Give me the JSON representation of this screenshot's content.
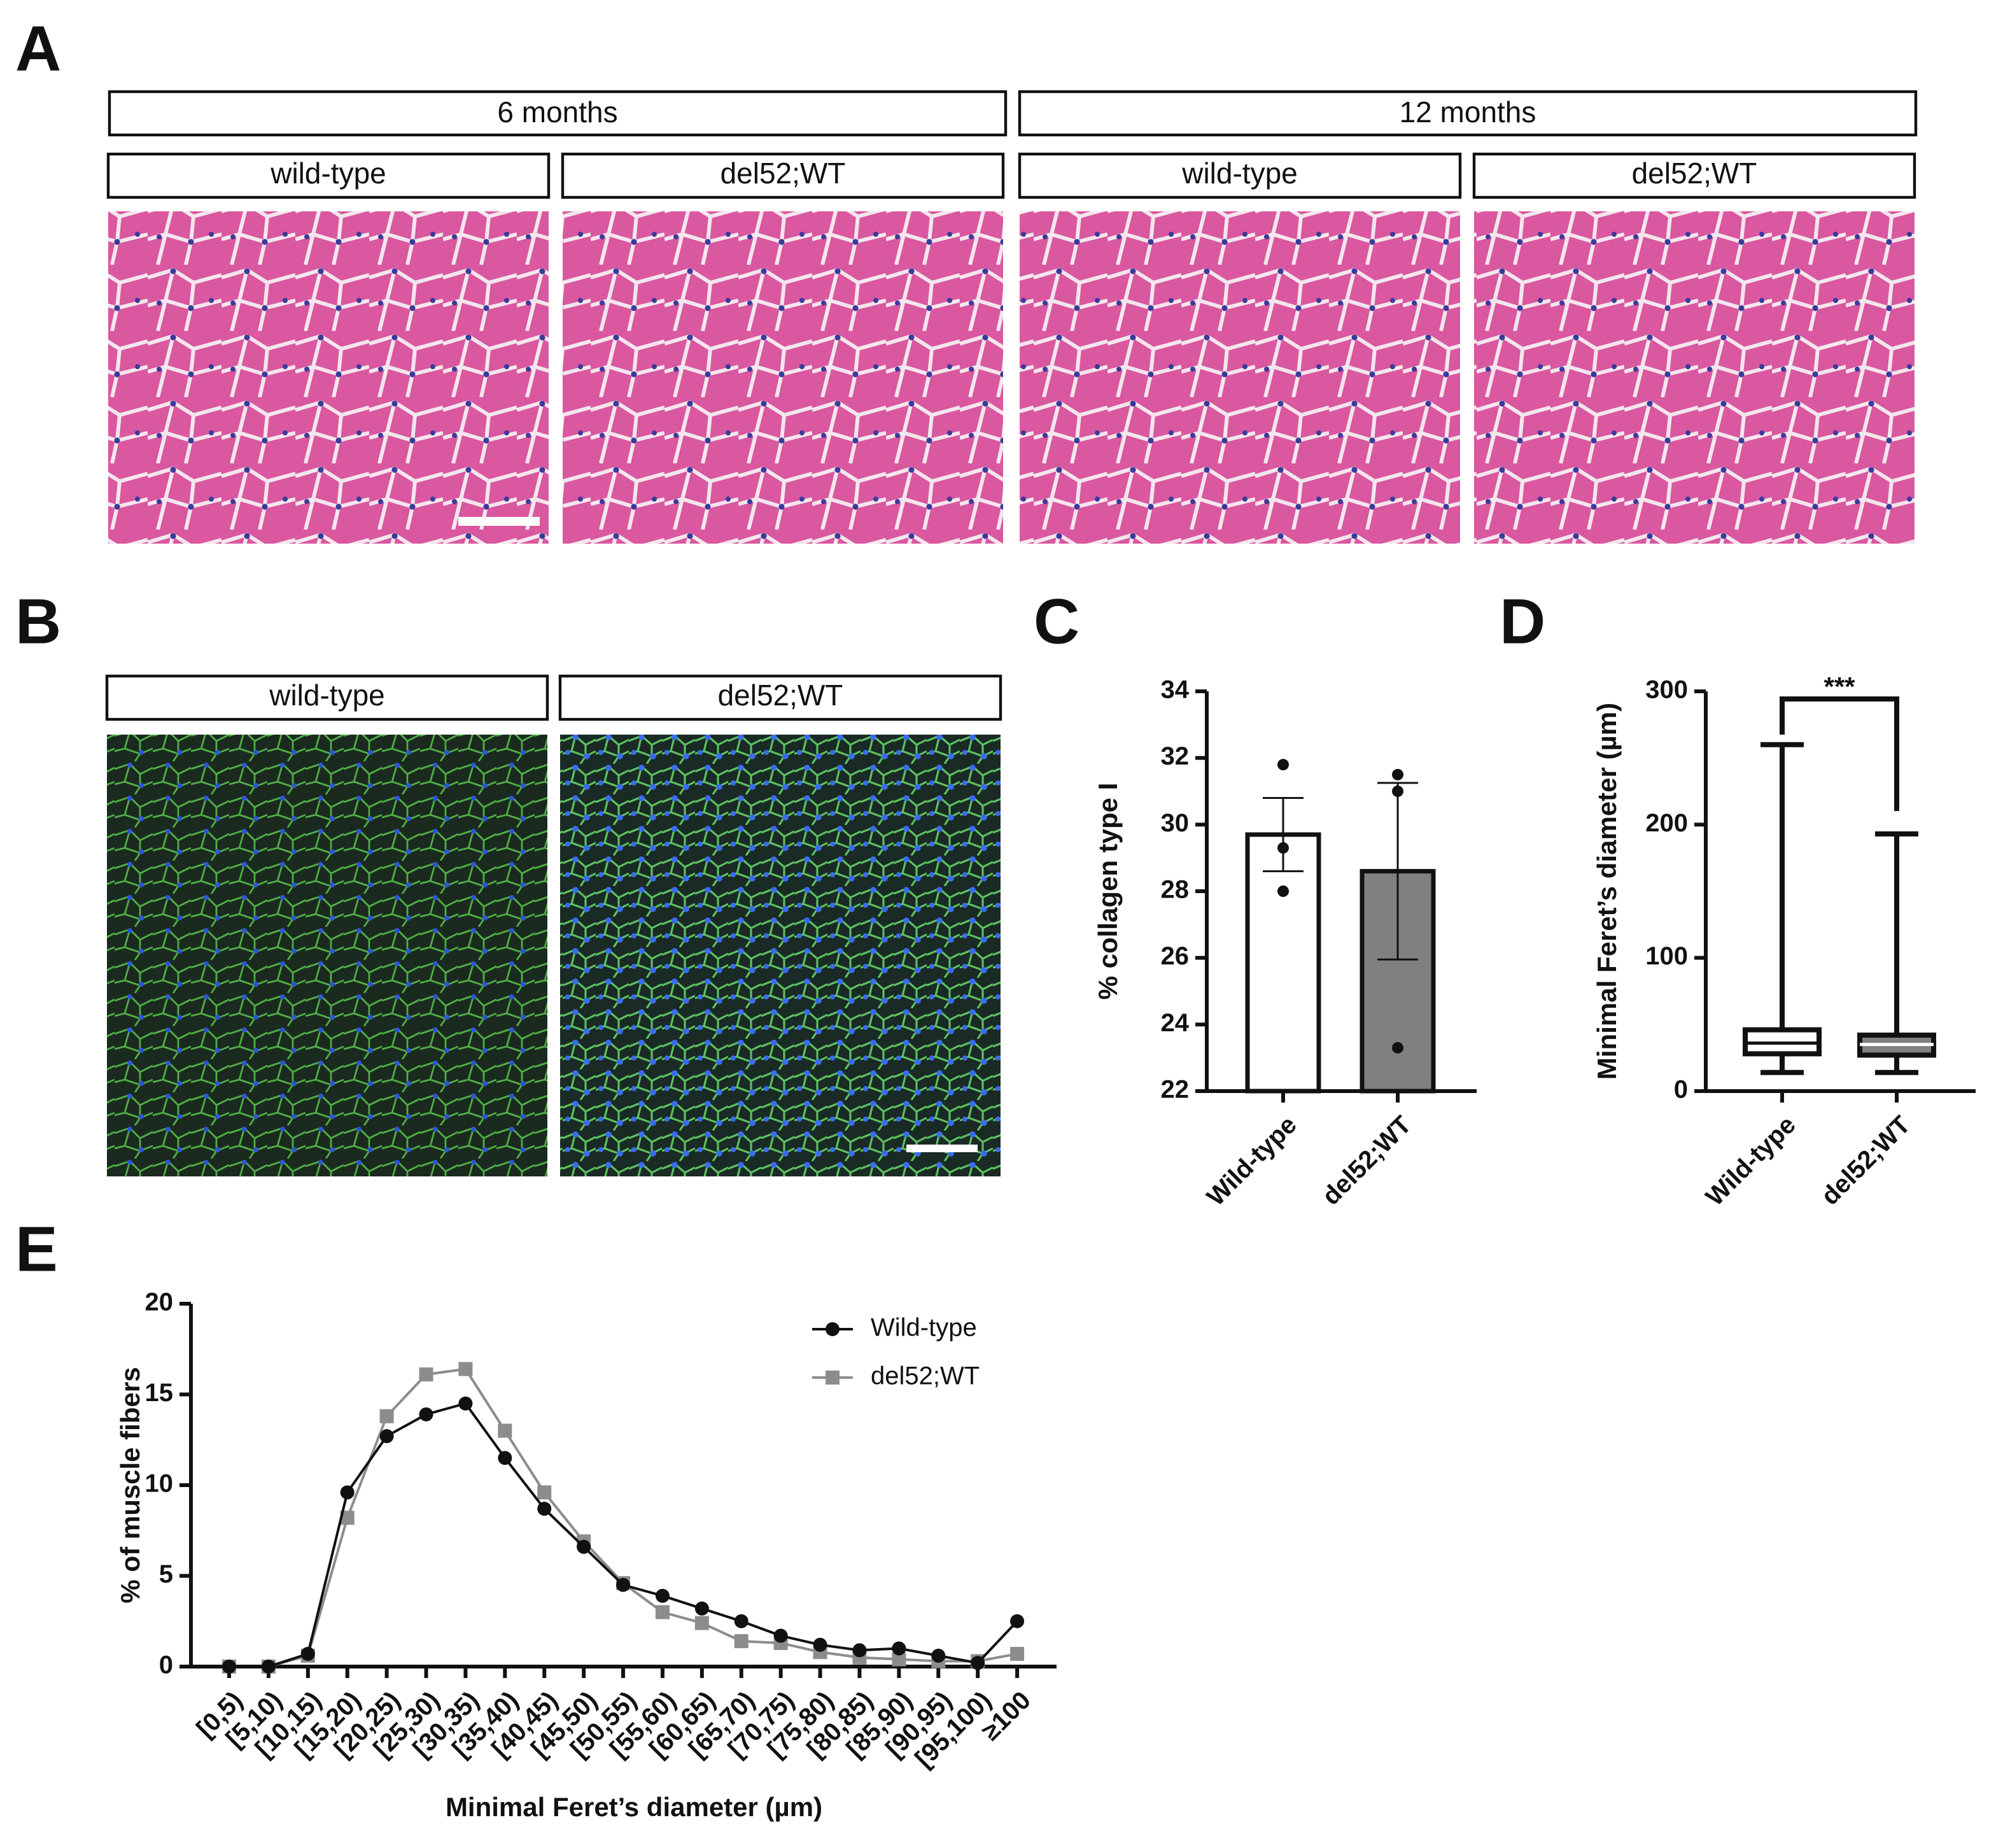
{
  "panel_labels": [
    "A",
    "B",
    "C",
    "D",
    "E"
  ],
  "panel_a": {
    "groups": [
      "6 months",
      "12 months"
    ],
    "conditions": [
      "wild-type",
      "del52;WT",
      "wild-type",
      "del52;WT"
    ]
  },
  "panel_b": {
    "conditions": [
      "wild-type",
      "del52;WT"
    ]
  },
  "chart_data": [
    {
      "type": "bar",
      "ylabel": "% collagen type I",
      "categories": [
        "Wild-type",
        "del52;WT"
      ],
      "values": [
        29.7,
        28.6
      ],
      "errors": [
        1.1,
        2.65
      ],
      "points": [
        [
          31.8,
          29.3,
          28.0
        ],
        [
          31.5,
          31.0,
          23.3
        ]
      ],
      "colors": [
        "#ffffff",
        "#808080"
      ],
      "ylim": [
        22,
        34
      ],
      "yticks": [
        22,
        24,
        26,
        28,
        30,
        32,
        34
      ]
    },
    {
      "type": "box",
      "ylabel": "Minimal Feret’s diameter (µm)",
      "categories": [
        "Wild-type",
        "del52;WT"
      ],
      "boxes": [
        {
          "min": 14,
          "q1": 28,
          "median": 36,
          "q3": 46,
          "max": 260
        },
        {
          "min": 14,
          "q1": 27,
          "median": 35,
          "q3": 42,
          "max": 193
        }
      ],
      "colors": [
        "#ffffff",
        "#808080"
      ],
      "annotation": "***",
      "ylim": [
        0,
        300
      ],
      "yticks": [
        0,
        100,
        200,
        300
      ]
    },
    {
      "type": "line",
      "ylabel": "% of muscle fibers",
      "xlabel": "Minimal Feret’s diameter (µm)",
      "categories": [
        "[0,5)",
        "[5,10)",
        "[10,15)",
        "[15,20)",
        "[20,25)",
        "[25,30)",
        "[30,35)",
        "[35,40)",
        "[40,45)",
        "[45,50)",
        "[50,55)",
        "[55,60)",
        "[60,65)",
        "[65,70)",
        "[70,75)",
        "[75,80)",
        "[80,85)",
        "[85,90)",
        "[90,95)",
        "[95,100)",
        "≥100"
      ],
      "series": [
        {
          "name": "Wild-type",
          "color": "#111111",
          "marker": "circle",
          "values": [
            0,
            0,
            0.7,
            9.6,
            12.7,
            13.9,
            14.5,
            11.5,
            8.7,
            6.6,
            4.5,
            3.9,
            3.2,
            2.5,
            1.7,
            1.2,
            0.9,
            1.0,
            0.6,
            0.2,
            2.5
          ]
        },
        {
          "name": "del52;WT",
          "color": "#8c8c8c",
          "marker": "square",
          "values": [
            0,
            0,
            0.6,
            8.2,
            13.8,
            16.1,
            16.4,
            13.0,
            9.6,
            6.9,
            4.6,
            3.0,
            2.4,
            1.4,
            1.3,
            0.8,
            0.5,
            0.4,
            0.3,
            0.3,
            0.7
          ]
        }
      ],
      "legend": "top-right",
      "ylim": [
        0,
        20
      ],
      "yticks": [
        0,
        5,
        10,
        15,
        20
      ]
    }
  ]
}
